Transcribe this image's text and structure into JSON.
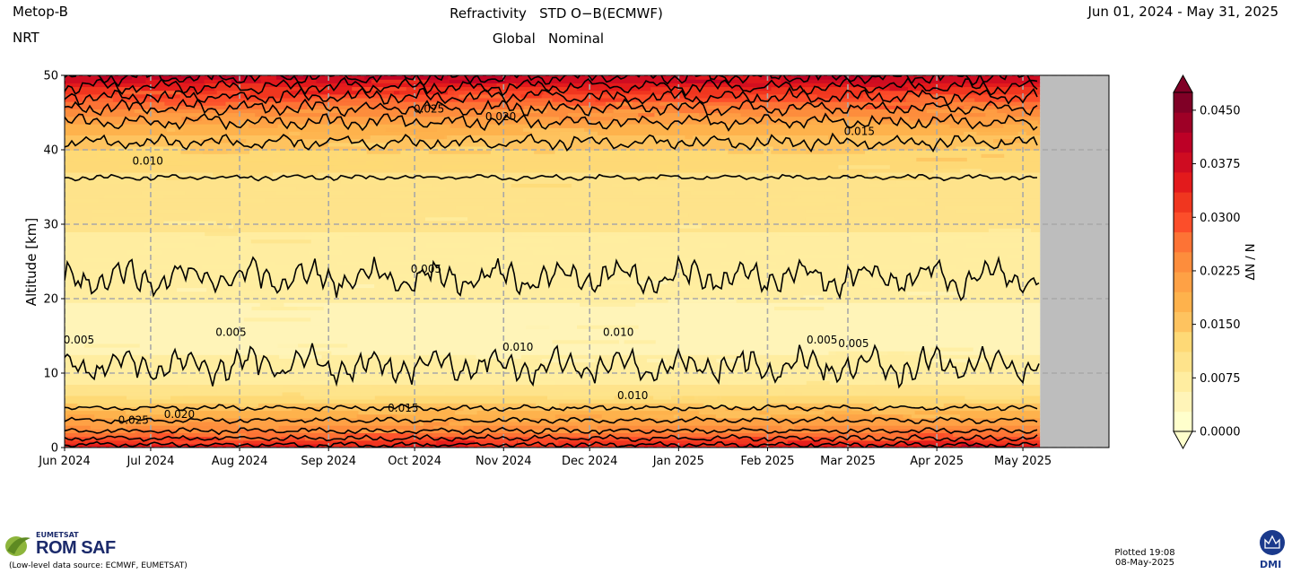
{
  "header": {
    "satellite": "Metop-B",
    "mode": "NRT",
    "title_line1": "Refractivity   STD O−B(ECMWF)",
    "title_line2": "Global   Nominal",
    "date_range": "Jun 01, 2024 - May 31, 2025"
  },
  "footer": {
    "eumetsat": "EUMETSAT",
    "romsaf": "ROM SAF",
    "data_source": "(Low-level data source: ECMWF, EUMETSAT)",
    "plotted_line1": "Plotted 19:08",
    "plotted_line2": "08-May-2025",
    "dmi": "DMI"
  },
  "colors": {
    "no_data": "#bdbdbd",
    "grid": "#a8a8a8",
    "contour": "#000000",
    "colormap": [
      "#ffffcc",
      "#fff4b8",
      "#ffeda0",
      "#fee38b",
      "#fed976",
      "#fec35f",
      "#feb24c",
      "#fea145",
      "#fd8d3c",
      "#fd7335",
      "#fc4e2a",
      "#f0361f",
      "#e31a1c",
      "#cf0c21",
      "#bd0026",
      "#9e0026",
      "#800026"
    ]
  },
  "chart_data": {
    "type": "heatmap",
    "title": "Refractivity   STD O−B(ECMWF)",
    "ylabel": "Altitude [km]",
    "ylim": [
      0,
      50
    ],
    "yticks": [
      0,
      10,
      20,
      30,
      40,
      50
    ],
    "xlim": [
      "2024-06-01",
      "2025-05-31"
    ],
    "data_end": "2025-05-07",
    "xticks": [
      {
        "label": "Jun 2024",
        "date": "2024-06-01"
      },
      {
        "label": "Jul 2024",
        "date": "2024-07-01"
      },
      {
        "label": "Aug 2024",
        "date": "2024-08-01"
      },
      {
        "label": "Sep 2024",
        "date": "2024-09-01"
      },
      {
        "label": "Oct 2024",
        "date": "2024-10-01"
      },
      {
        "label": "Nov 2024",
        "date": "2024-11-01"
      },
      {
        "label": "Dec 2024",
        "date": "2024-12-01"
      },
      {
        "label": "Jan 2025",
        "date": "2025-01-01"
      },
      {
        "label": "Feb 2025",
        "date": "2025-02-01"
      },
      {
        "label": "Mar 2025",
        "date": "2025-03-01"
      },
      {
        "label": "Apr 2025",
        "date": "2025-04-01"
      },
      {
        "label": "May 2025",
        "date": "2025-05-01"
      }
    ],
    "grid": true,
    "colorbar": {
      "label": "ΔN / N",
      "min": 0.0,
      "max": 0.0475,
      "step": 0.0025,
      "extend": "both",
      "ticks": [
        "0.0000",
        "0.0075",
        "0.0150",
        "0.0225",
        "0.0300",
        "0.0375",
        "0.0450"
      ]
    },
    "altitude_km": [
      0,
      0.5,
      1,
      1.5,
      2,
      3,
      4,
      5,
      6,
      7,
      8,
      10,
      12,
      15,
      18,
      22,
      25,
      28,
      30,
      33,
      36,
      38,
      40,
      42,
      44,
      46,
      48,
      50
    ],
    "mean_std_profile": [
      0.038,
      0.034,
      0.031,
      0.029,
      0.026,
      0.022,
      0.019,
      0.016,
      0.013,
      0.01,
      0.008,
      0.0055,
      0.0045,
      0.004,
      0.0042,
      0.0048,
      0.0055,
      0.0068,
      0.0078,
      0.0088,
      0.0098,
      0.0112,
      0.0135,
      0.0165,
      0.0205,
      0.026,
      0.033,
      0.041
    ],
    "contour_levels": [
      0.005,
      0.01,
      0.015,
      0.02,
      0.025,
      0.03,
      0.035,
      0.04
    ],
    "contour_labels": [
      {
        "text": "0.005",
        "date": "2024-06-06",
        "alt": 14
      },
      {
        "text": "0.005",
        "date": "2024-07-29",
        "alt": 15
      },
      {
        "text": "0.005",
        "date": "2024-10-05",
        "alt": 23.5
      },
      {
        "text": "0.010",
        "date": "2024-11-06",
        "alt": 13
      },
      {
        "text": "0.010",
        "date": "2024-12-11",
        "alt": 15
      },
      {
        "text": "0.005",
        "date": "2025-02-20",
        "alt": 14
      },
      {
        "text": "0.005",
        "date": "2025-03-03",
        "alt": 13.5
      },
      {
        "text": "0.010",
        "date": "2024-06-30",
        "alt": 38
      },
      {
        "text": "0.010",
        "date": "2024-12-16",
        "alt": 6.5
      },
      {
        "text": "0.015",
        "date": "2024-09-27",
        "alt": 4.8
      },
      {
        "text": "0.015",
        "date": "2025-03-05",
        "alt": 42
      },
      {
        "text": "0.020",
        "date": "2024-10-31",
        "alt": 44
      },
      {
        "text": "0.020",
        "date": "2024-07-11",
        "alt": 4
      },
      {
        "text": "0.025",
        "date": "2024-10-06",
        "alt": 45
      },
      {
        "text": "0.025",
        "date": "2024-06-25",
        "alt": 3.2
      }
    ]
  }
}
